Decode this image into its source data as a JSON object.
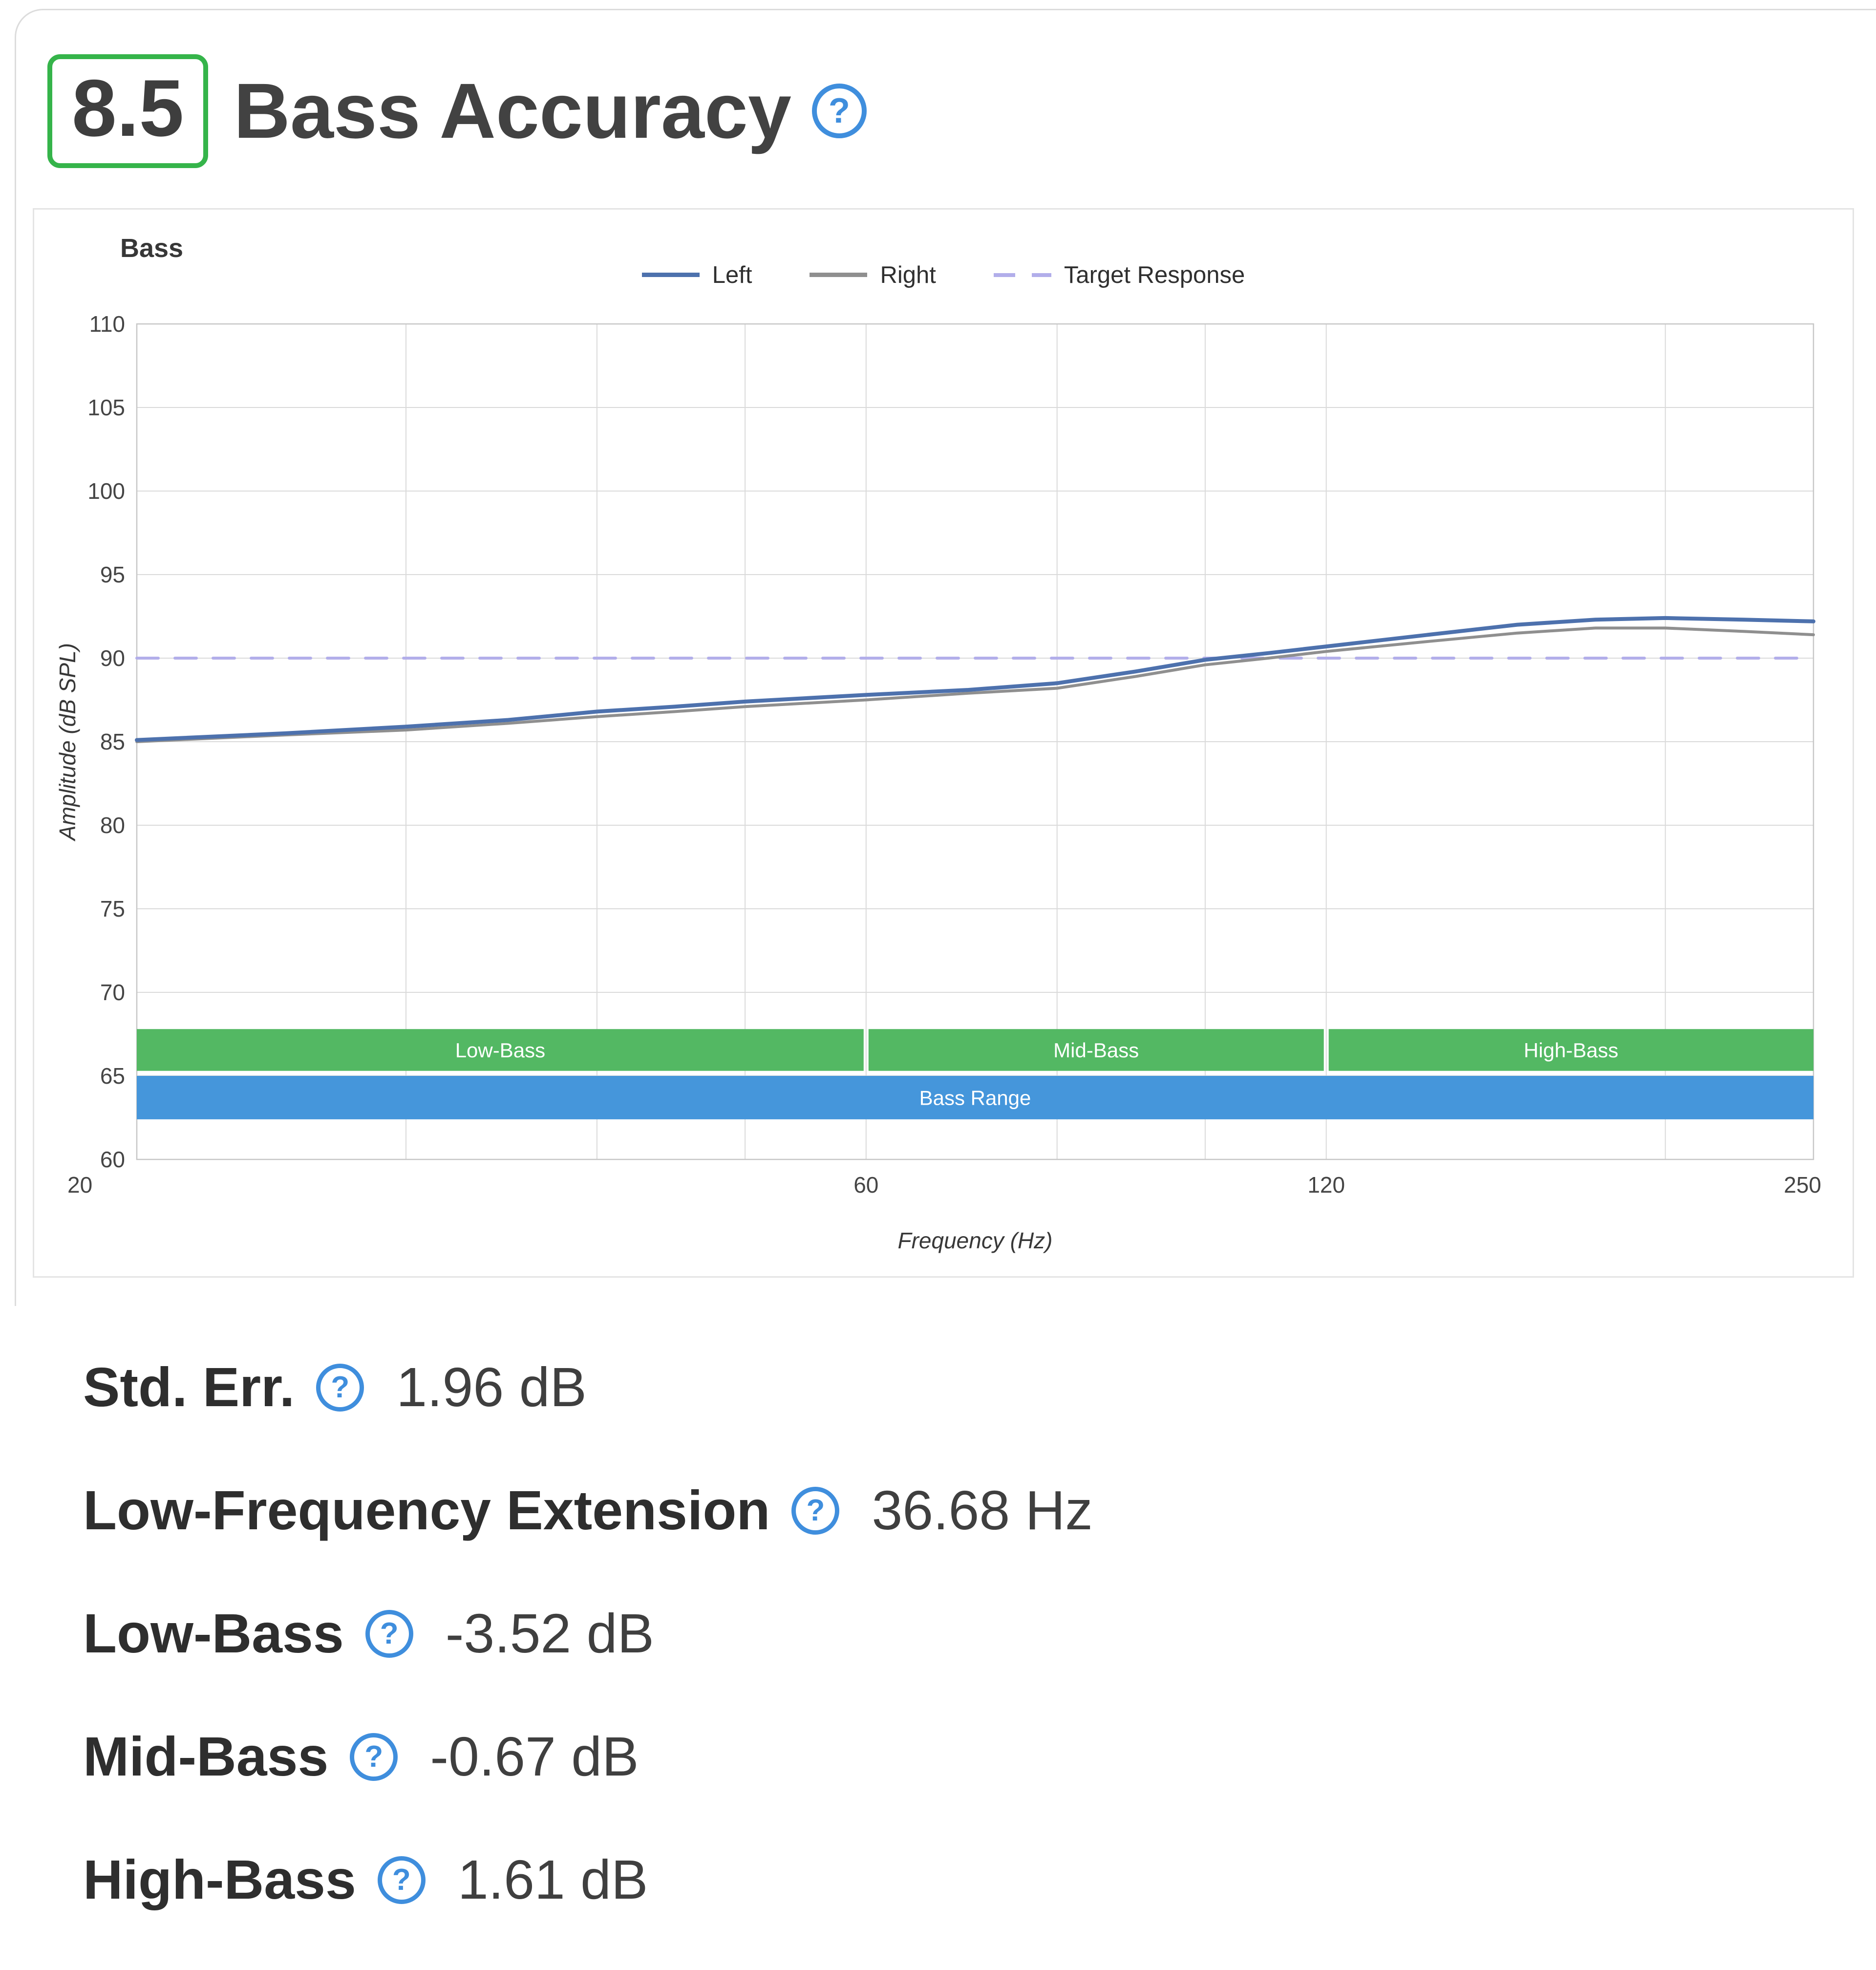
{
  "page": {
    "section_score": "8.5",
    "section_title": "Bass Accuracy"
  },
  "icons": {
    "help_glyph": "?"
  },
  "chart_data": {
    "type": "line",
    "title": "Bass",
    "xlabel": "Frequency (Hz)",
    "ylabel": "Amplitude (dB SPL)",
    "xscale": "log",
    "xlim": [
      20,
      250
    ],
    "ylim": [
      60,
      110
    ],
    "yticks": [
      60,
      65,
      70,
      75,
      80,
      85,
      90,
      95,
      100,
      105,
      110
    ],
    "xgridlines": [
      20,
      30,
      40,
      50,
      60,
      80,
      100,
      120,
      200,
      250
    ],
    "xtick_labels": [
      {
        "value": 20,
        "label": "20"
      },
      {
        "value": 60,
        "label": "60"
      },
      {
        "value": 120,
        "label": "120"
      },
      {
        "value": 250,
        "label": "250"
      }
    ],
    "legend": [
      {
        "label": "Left",
        "color": "#4d71ad",
        "style": "solid"
      },
      {
        "label": "Right",
        "color": "#8f8f8f",
        "style": "solid"
      },
      {
        "label": "Target Response",
        "color": "#b2aeea",
        "style": "dashed"
      }
    ],
    "x": [
      20,
      25,
      30,
      35,
      40,
      45,
      50,
      60,
      70,
      80,
      90,
      100,
      110,
      120,
      140,
      160,
      180,
      200,
      225,
      250
    ],
    "series": [
      {
        "name": "Left",
        "color": "#4d71ad",
        "width": 8,
        "values": [
          85.1,
          85.5,
          85.9,
          86.3,
          86.8,
          87.1,
          87.4,
          87.8,
          88.1,
          88.5,
          89.2,
          89.9,
          90.3,
          90.7,
          91.4,
          92.0,
          92.3,
          92.4,
          92.3,
          92.2
        ]
      },
      {
        "name": "Right",
        "color": "#8f8f8f",
        "width": 6,
        "values": [
          85.0,
          85.4,
          85.7,
          86.1,
          86.5,
          86.8,
          87.1,
          87.5,
          87.9,
          88.2,
          88.9,
          89.6,
          90.0,
          90.4,
          91.0,
          91.5,
          91.8,
          91.8,
          91.6,
          91.4
        ]
      },
      {
        "name": "Target Response",
        "color": "#b2aeea",
        "width": 6,
        "dash": [
          44,
          34
        ],
        "values": [
          90,
          90,
          90,
          90,
          90,
          90,
          90,
          90,
          90,
          90,
          90,
          90,
          90,
          90,
          90,
          90,
          90,
          90,
          90,
          90
        ]
      }
    ],
    "bands": [
      {
        "label": "Low-Bass",
        "from": 20,
        "to": 60,
        "y0": 65.3,
        "y1": 67.8,
        "color": "#53b863"
      },
      {
        "label": "Mid-Bass",
        "from": 60,
        "to": 120,
        "y0": 65.3,
        "y1": 67.8,
        "color": "#53b863"
      },
      {
        "label": "High-Bass",
        "from": 120,
        "to": 250,
        "y0": 65.3,
        "y1": 67.8,
        "color": "#53b863"
      },
      {
        "label": "Bass Range",
        "from": 20,
        "to": 250,
        "y0": 62.4,
        "y1": 65.0,
        "color": "#4596db"
      }
    ]
  },
  "metrics": [
    {
      "label": "Std. Err.",
      "value": "1.96 dB"
    },
    {
      "label": "Low-Frequency Extension",
      "value": "36.68 Hz"
    },
    {
      "label": "Low-Bass",
      "value": "-3.52 dB"
    },
    {
      "label": "Mid-Bass",
      "value": "-0.67 dB"
    },
    {
      "label": "High-Bass",
      "value": "1.61 dB"
    }
  ],
  "colors": {
    "score_green": "#35b44a",
    "help_blue": "#3f8edd",
    "card_border": "#dcdcdc",
    "grid": "#dadada",
    "band_green": "#53b863",
    "band_blue": "#4596db",
    "left_line": "#4d71ad",
    "right_line": "#8f8f8f",
    "target_line": "#b2aeea"
  }
}
